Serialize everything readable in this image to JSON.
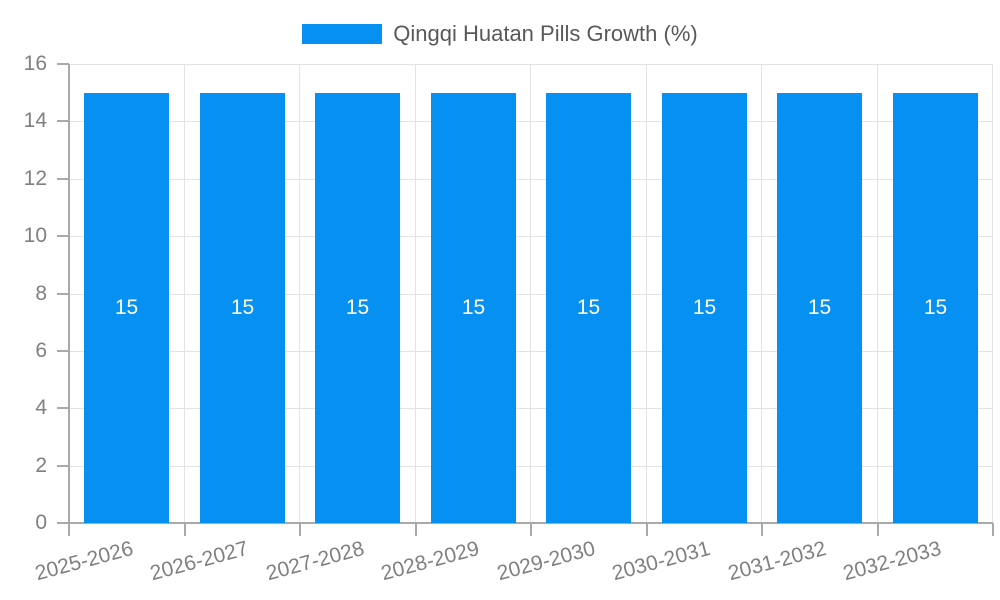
{
  "chart_data": {
    "type": "bar",
    "title": "",
    "legend": {
      "position": "top-center",
      "items": [
        {
          "label": "Qingqi Huatan Pills Growth (%)",
          "color": "#0690F2"
        }
      ]
    },
    "categories": [
      "2025-2026",
      "2026-2027",
      "2027-2028",
      "2028-2029",
      "2029-2030",
      "2030-2031",
      "2031-2032",
      "2032-2033"
    ],
    "series": [
      {
        "name": "Qingqi Huatan Pills Growth (%)",
        "values": [
          15,
          15,
          15,
          15,
          15,
          15,
          15,
          15
        ],
        "data_labels": [
          "15",
          "15",
          "15",
          "15",
          "15",
          "15",
          "15",
          "15"
        ]
      }
    ],
    "xlabel": "",
    "ylabel": "",
    "ylim": [
      0,
      16
    ],
    "y_ticks": [
      0,
      2,
      4,
      6,
      8,
      10,
      12,
      14,
      16
    ],
    "grid": true,
    "x_label_rotation_deg": -15
  },
  "colors": {
    "bar": "#0690F2",
    "gridline": "#e3e3e3",
    "axis": "#a9a9a9",
    "tick_label": "#808080",
    "value_label": "#ffffff",
    "legend_text": "#58595b",
    "background": "#ffffff"
  }
}
